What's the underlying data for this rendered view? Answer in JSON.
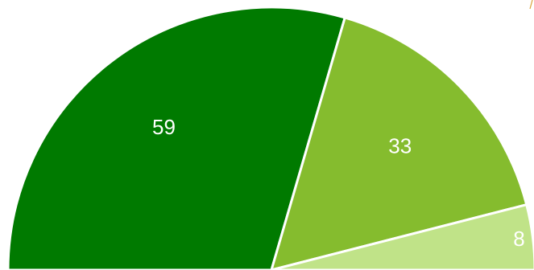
{
  "chart_data": {
    "type": "pie",
    "subtype": "semicircle",
    "categories": [
      "",
      "",
      ""
    ],
    "values": [
      59,
      33,
      8
    ],
    "labels": [
      "59",
      "33",
      "8"
    ],
    "colors": [
      "#007a00",
      "#85bc2e",
      "#c0e388"
    ],
    "title": "",
    "legend": "none",
    "border_color": "#ffffff"
  }
}
